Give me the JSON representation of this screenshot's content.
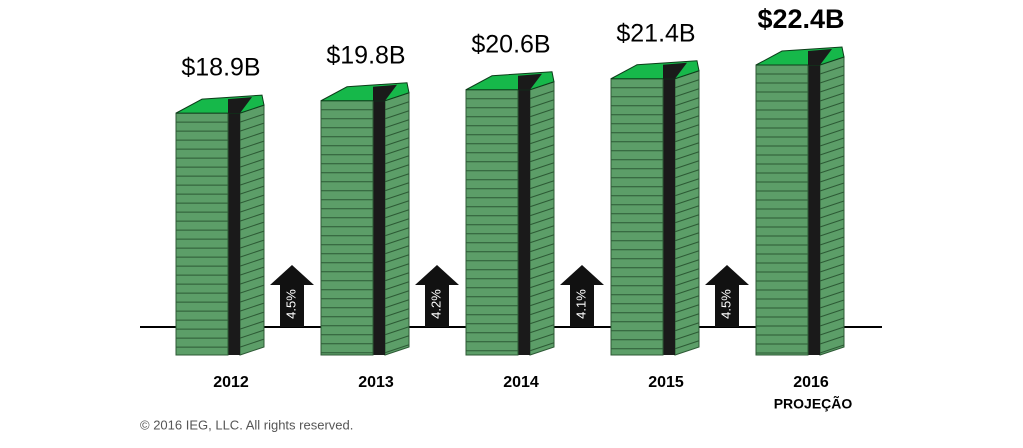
{
  "chart_data": {
    "type": "stack",
    "categories": [
      "2012",
      "2013",
      "2014",
      "2015",
      "2016"
    ],
    "values": [
      18.9,
      19.8,
      20.6,
      21.4,
      22.4
    ],
    "value_labels": [
      "$18.9B",
      "$19.8B",
      "$20.6B",
      "$21.4B",
      "$22.4B"
    ],
    "color": "#5c9e68",
    "growth": {
      "values": [
        4.5,
        4.2,
        4.1,
        4.5
      ],
      "value_labels": [
        "4.5%",
        "4.2%",
        "4.1%",
        "4.5%"
      ]
    },
    "annotation": "PROJEÇÃO",
    "footer": "© 2016 IEG, LLC. All rights reserved."
  }
}
